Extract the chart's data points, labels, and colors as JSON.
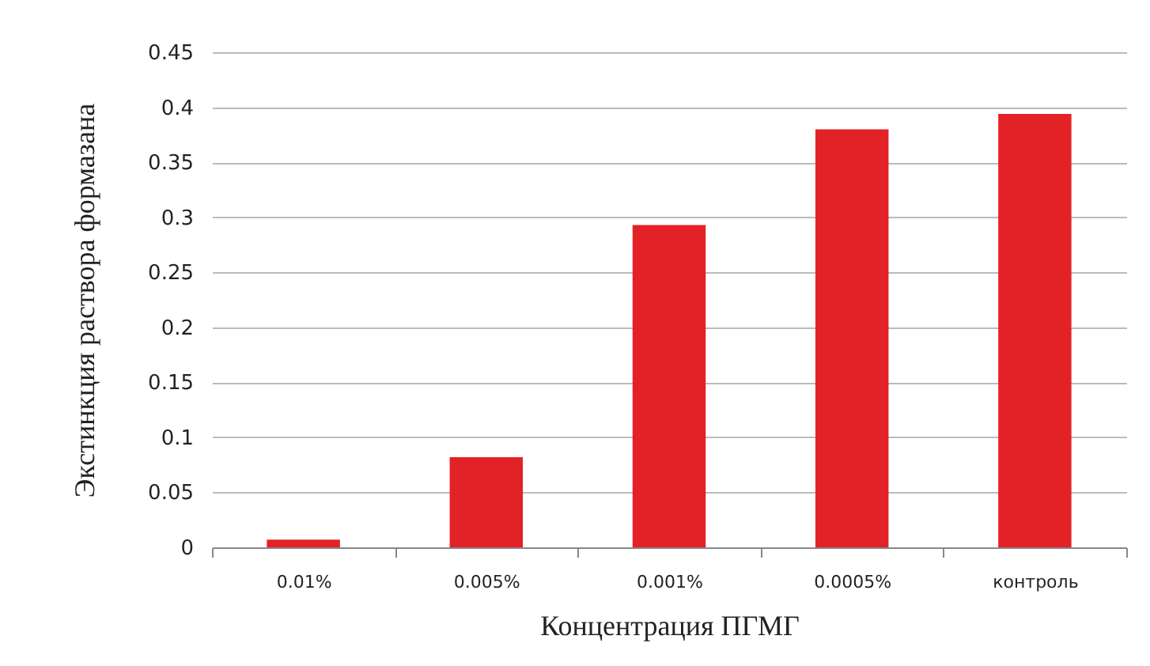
{
  "chart_data": {
    "type": "bar",
    "xlabel": "Концентрация ПГМГ",
    "ylabel": "Экстинкция  раствора формазана",
    "categories": [
      "0.01%",
      "0.005%",
      "0.001%",
      "0.0005%",
      "контроль"
    ],
    "values": [
      0.007,
      0.082,
      0.293,
      0.38,
      0.394
    ],
    "color": "#e32227",
    "ylim": [
      0,
      0.45
    ],
    "yticks": [
      0,
      0.05,
      0.1,
      0.15,
      0.2,
      0.25,
      0.3,
      0.35,
      0.4,
      0.45
    ],
    "grid": "y"
  }
}
